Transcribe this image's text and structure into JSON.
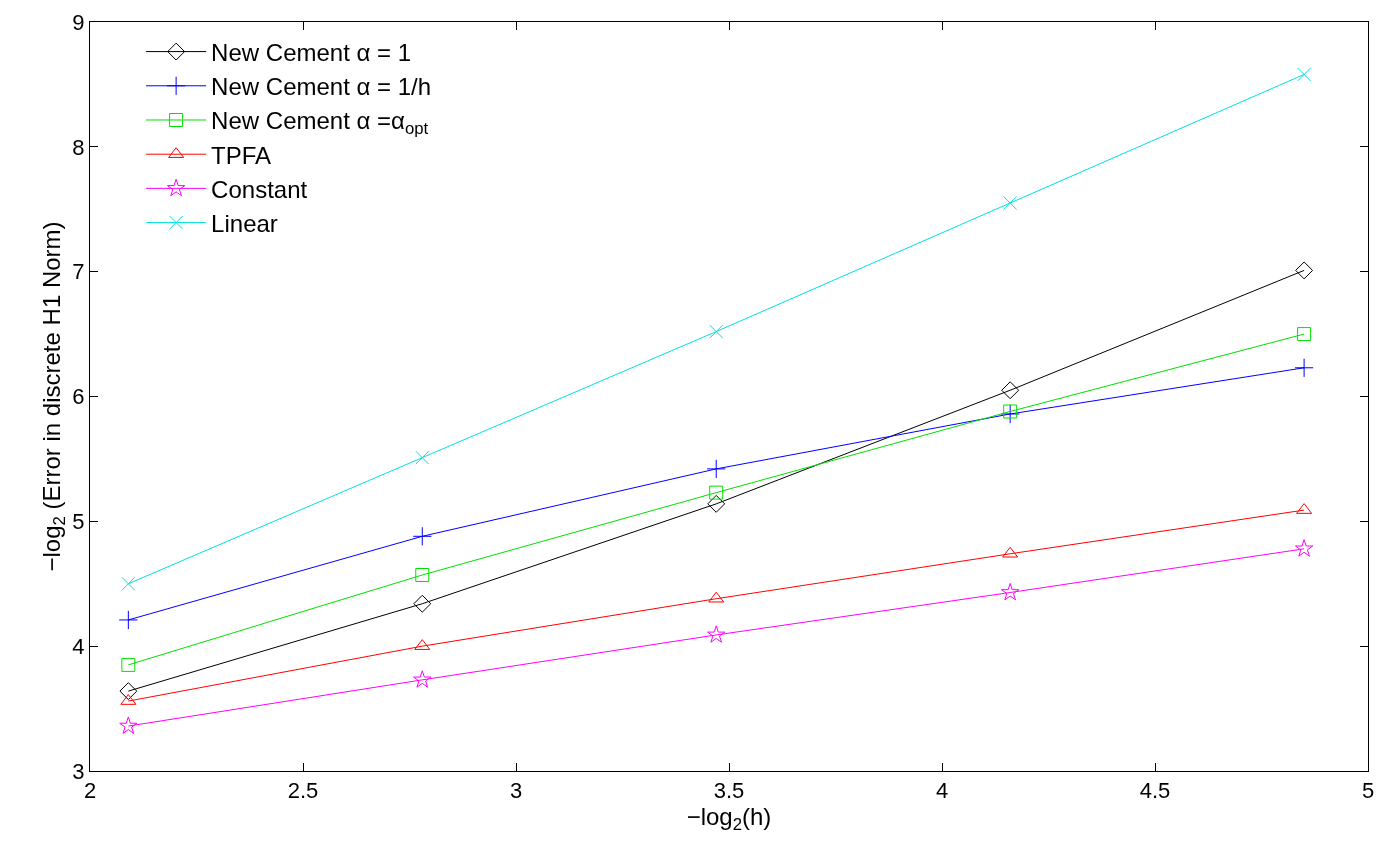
{
  "chart_data": {
    "type": "line",
    "x": [
      2.09,
      2.78,
      3.47,
      4.16,
      4.85
    ],
    "xlabel": "−log$_{2}$(h)",
    "ylabel": "−log$_{2}$ (Error in discrete H1 Norm)",
    "xlim": [
      2,
      5
    ],
    "xticks": [
      2,
      2.5,
      3,
      3.5,
      4,
      4.5,
      5
    ],
    "ylim": [
      3,
      9
    ],
    "yticks": [
      3,
      4,
      5,
      6,
      7,
      8,
      9
    ],
    "legend": "top left",
    "line_style": "solid",
    "series": [
      {
        "name": "New Cement α = 1",
        "color": "#000000",
        "marker": "diamond",
        "values": [
          3.64,
          4.34,
          5.14,
          6.05,
          7.01
        ]
      },
      {
        "name": "New Cement α = 1/h",
        "color": "#0000ff",
        "marker": "plus",
        "values": [
          4.21,
          4.88,
          5.42,
          5.86,
          6.23
        ]
      },
      {
        "name": "New Cement α =α$_{opt}$",
        "color": "#00e000",
        "marker": "square",
        "values": [
          3.85,
          4.57,
          5.23,
          5.88,
          6.5
        ]
      },
      {
        "name": "TPFA",
        "color": "#ff0000",
        "marker": "triangle",
        "values": [
          3.56,
          4.0,
          4.38,
          4.74,
          5.09
        ]
      },
      {
        "name": "Constant",
        "color": "#ff00ff",
        "marker": "star",
        "values": [
          3.36,
          3.73,
          4.09,
          4.43,
          4.78
        ]
      },
      {
        "name": "Linear",
        "color": "#00e0e0",
        "marker": "cross",
        "values": [
          4.5,
          5.51,
          6.52,
          7.55,
          8.58
        ]
      }
    ]
  }
}
